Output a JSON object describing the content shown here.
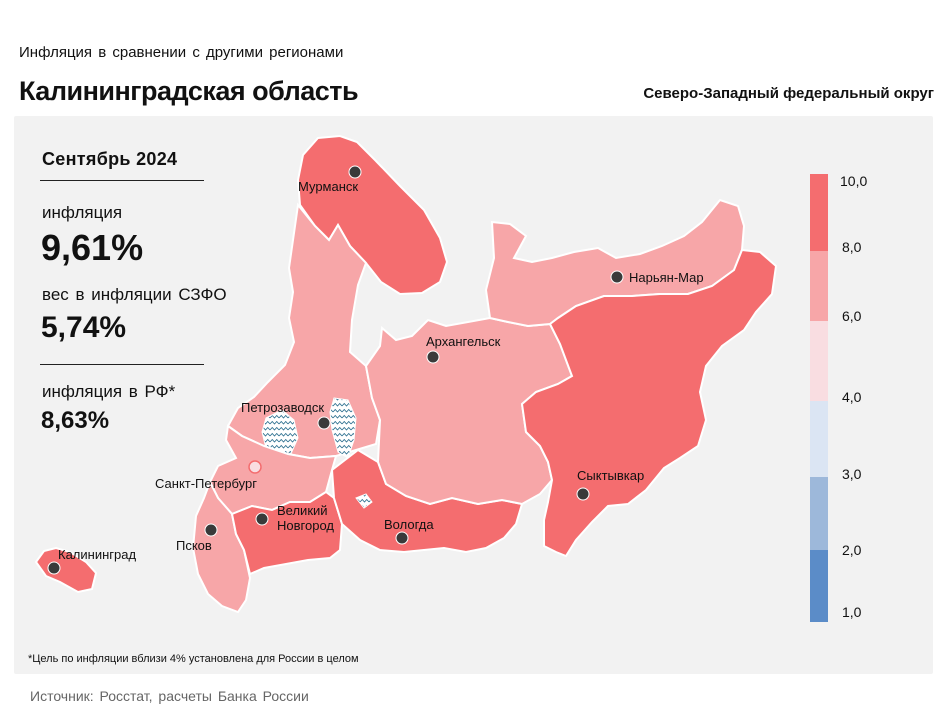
{
  "header": {
    "subtitle": "Инфляция в сравнении с другими регионами",
    "region_title": "Калининградская область",
    "district": "Северо-Западный федеральный округ"
  },
  "stats": {
    "period": "Сентябрь 2024",
    "inflation_label": "инфляция",
    "inflation_value": "9,61%",
    "weight_label": "вес в инфляции СЗФО",
    "weight_value": "5,74%",
    "rf_label": "инфляция в РФ*",
    "rf_value": "8,63%"
  },
  "legend": {
    "ticks": [
      "10,0",
      "8,0",
      "6,0",
      "4,0",
      "3,0",
      "2,0",
      "1,0"
    ],
    "colors": [
      "#f46d6f",
      "#f7a6a8",
      "#f9dde1",
      "#dbe5f3",
      "#9db8da",
      "#5b8cc8"
    ]
  },
  "map": {
    "colors": {
      "high": "#f46d6f",
      "mid": "#f7a6a8",
      "border": "#ffffff",
      "city": "#3a3a3a"
    },
    "cities": [
      {
        "name": "Мурманск"
      },
      {
        "name": "Нарьян-Мар"
      },
      {
        "name": "Архангельск"
      },
      {
        "name": "Петрозаводск"
      },
      {
        "name": "Санкт-Петербург"
      },
      {
        "name": "Сыктывкар"
      },
      {
        "name": "Великий Новгород"
      },
      {
        "name": "Вологда"
      },
      {
        "name": "Псков"
      },
      {
        "name": "Калининград"
      }
    ]
  },
  "footnote": "*Цель по инфляции вблизи 4% установлена для России в целом",
  "source": "Источник: Росстат, расчеты Банка России"
}
